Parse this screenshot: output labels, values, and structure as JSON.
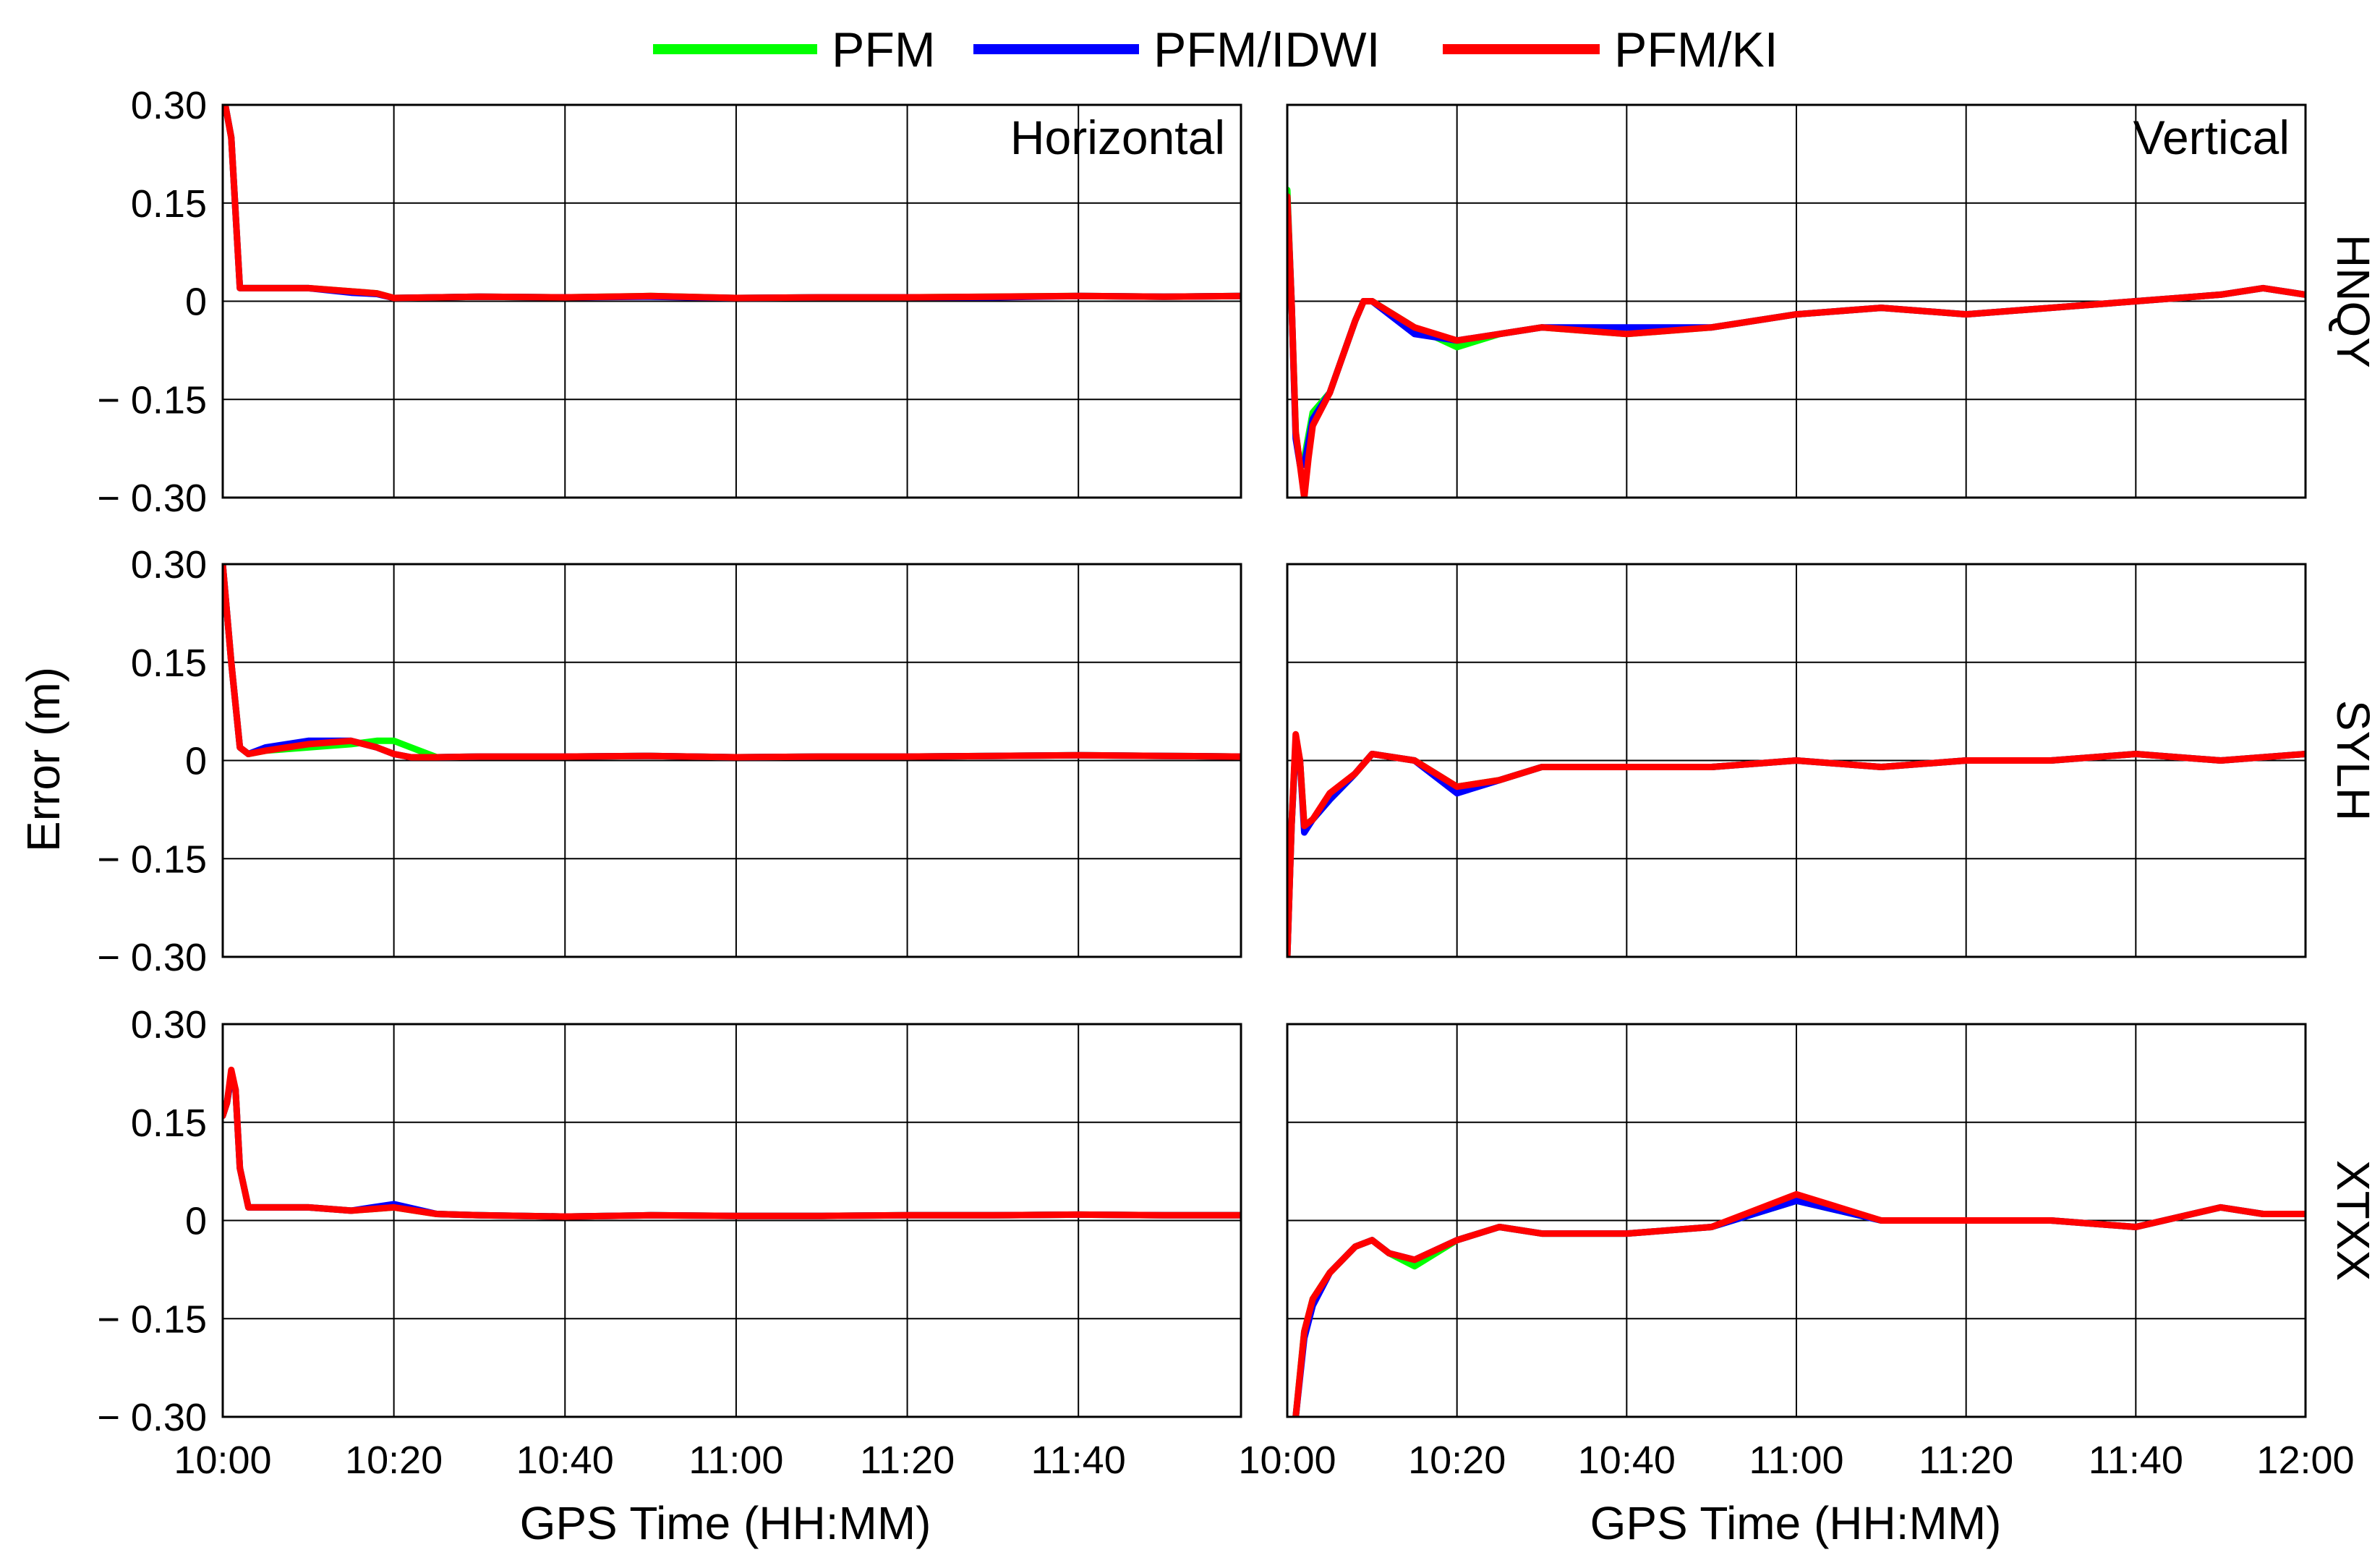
{
  "legend": [
    {
      "label": "PFM",
      "color": "#00ff00"
    },
    {
      "label": "PFM/IDWI",
      "color": "#0000ff"
    },
    {
      "label": "PFM/KI",
      "color": "#ff0000"
    }
  ],
  "y_axis_title": "Error (m)",
  "x_axis_title": "GPS Time (HH:MM)",
  "column_titles": [
    "Horizontal",
    "Vertical"
  ],
  "stations": [
    "HNQY",
    "SYLH",
    "XTXX"
  ],
  "y_ticks": [
    "0.30",
    "0.15",
    "0",
    "− 0.15",
    "− 0.30"
  ],
  "x_ticks_left": [
    "10:00",
    "10:20",
    "10:40",
    "11:00",
    "11:20",
    "11:40"
  ],
  "x_ticks_right": [
    "10:00",
    "10:20",
    "10:40",
    "11:00",
    "11:20",
    "11:40",
    "12:00"
  ],
  "chart_data": {
    "type": "line",
    "x_unit": "minutes after 10:00 (GPS Time)",
    "xlim_horizontal": [
      0,
      119
    ],
    "xlim_vertical": [
      0,
      120
    ],
    "ylim": [
      -0.3,
      0.3
    ],
    "y_ticks": [
      0.3,
      0.15,
      0,
      -0.15,
      -0.3
    ],
    "grid": true,
    "legend_position": "top-center",
    "series_names": [
      "PFM",
      "PFM/IDWI",
      "PFM/KI"
    ],
    "panels": [
      {
        "station": "HNQY",
        "component": "Horizontal",
        "series": [
          {
            "name": "PFM",
            "x": [
              0.3,
              1,
              2,
              5,
              10,
              15,
              18,
              20,
              30,
              40,
              50,
              60,
              70,
              80,
              90,
              100,
              110,
              119
            ],
            "y": [
              0.3,
              0.25,
              0.02,
              0.02,
              0.02,
              0.015,
              0.012,
              0.005,
              0.007,
              0.006,
              0.008,
              0.005,
              0.006,
              0.006,
              0.007,
              0.008,
              0.007,
              0.008
            ]
          },
          {
            "name": "PFM/IDWI",
            "x": [
              0.3,
              1,
              2,
              5,
              10,
              15,
              18,
              20,
              30,
              40,
              50,
              60,
              70,
              80,
              90,
              100,
              110,
              119
            ],
            "y": [
              0.3,
              0.25,
              0.02,
              0.02,
              0.02,
              0.013,
              0.011,
              0.005,
              0.007,
              0.006,
              0.007,
              0.005,
              0.006,
              0.006,
              0.006,
              0.008,
              0.007,
              0.008
            ]
          },
          {
            "name": "PFM/KI",
            "x": [
              0.3,
              1,
              2,
              5,
              10,
              15,
              18,
              20,
              30,
              40,
              50,
              60,
              70,
              80,
              90,
              100,
              110,
              119
            ],
            "y": [
              0.3,
              0.25,
              0.02,
              0.02,
              0.02,
              0.015,
              0.012,
              0.005,
              0.007,
              0.006,
              0.008,
              0.005,
              0.006,
              0.006,
              0.007,
              0.008,
              0.007,
              0.008
            ]
          }
        ]
      },
      {
        "station": "HNQY",
        "component": "Vertical",
        "series": [
          {
            "name": "PFM",
            "x": [
              0,
              0.5,
              1,
              1.5,
              2,
              3,
              5,
              8,
              9,
              10,
              15,
              20,
              25,
              30,
              40,
              50,
              60,
              70,
              80,
              90,
              100,
              110,
              115,
              120
            ],
            "y": [
              0.17,
              0.0,
              -0.2,
              -0.25,
              -0.24,
              -0.17,
              -0.14,
              -0.03,
              0.0,
              0.0,
              -0.04,
              -0.07,
              -0.05,
              -0.04,
              -0.05,
              -0.04,
              -0.02,
              -0.01,
              -0.02,
              -0.01,
              0.0,
              0.01,
              0.02,
              0.01
            ]
          },
          {
            "name": "PFM/IDWI",
            "x": [
              0,
              0.5,
              1,
              1.5,
              2,
              3,
              5,
              8,
              9,
              10,
              15,
              20,
              25,
              30,
              40,
              50,
              60,
              70,
              80,
              90,
              100,
              110,
              115,
              120
            ],
            "y": [
              0.16,
              0.0,
              -0.21,
              -0.25,
              -0.25,
              -0.18,
              -0.14,
              -0.03,
              0.0,
              0.0,
              -0.05,
              -0.06,
              -0.05,
              -0.04,
              -0.04,
              -0.04,
              -0.02,
              -0.01,
              -0.02,
              -0.01,
              0.0,
              0.01,
              0.02,
              0.01
            ]
          },
          {
            "name": "PFM/KI",
            "x": [
              0,
              0.5,
              1,
              1.5,
              2,
              2.5,
              3,
              5,
              8,
              9,
              10,
              15,
              20,
              25,
              30,
              40,
              50,
              60,
              70,
              80,
              90,
              100,
              110,
              115,
              120
            ],
            "y": [
              0.16,
              0.0,
              -0.2,
              -0.25,
              -0.3,
              -0.24,
              -0.19,
              -0.14,
              -0.03,
              0.0,
              0.0,
              -0.04,
              -0.06,
              -0.05,
              -0.04,
              -0.05,
              -0.04,
              -0.02,
              -0.01,
              -0.02,
              -0.01,
              0.0,
              0.01,
              0.02,
              0.01
            ]
          }
        ]
      },
      {
        "station": "SYLH",
        "component": "Horizontal",
        "series": [
          {
            "name": "PFM",
            "x": [
              0,
              1,
              2,
              3,
              5,
              10,
              15,
              18,
              20,
              22,
              25,
              30,
              40,
              50,
              60,
              70,
              80,
              90,
              100,
              110,
              119
            ],
            "y": [
              0.3,
              0.15,
              0.02,
              0.01,
              0.015,
              0.02,
              0.025,
              0.03,
              0.03,
              0.02,
              0.005,
              0.006,
              0.006,
              0.007,
              0.005,
              0.006,
              0.006,
              0.007,
              0.008,
              0.007,
              0.006
            ]
          },
          {
            "name": "PFM/IDWI",
            "x": [
              0,
              1,
              2,
              3,
              5,
              10,
              15,
              18,
              20,
              22,
              25,
              30,
              40,
              50,
              60,
              70,
              80,
              90,
              100,
              110,
              119
            ],
            "y": [
              0.3,
              0.15,
              0.02,
              0.01,
              0.02,
              0.03,
              0.03,
              0.02,
              0.01,
              0.005,
              0.005,
              0.006,
              0.006,
              0.007,
              0.005,
              0.006,
              0.006,
              0.007,
              0.008,
              0.007,
              0.006
            ]
          },
          {
            "name": "PFM/KI",
            "x": [
              0,
              1,
              2,
              3,
              5,
              10,
              15,
              18,
              20,
              22,
              25,
              30,
              40,
              50,
              60,
              70,
              80,
              90,
              100,
              110,
              119
            ],
            "y": [
              0.3,
              0.15,
              0.02,
              0.01,
              0.015,
              0.025,
              0.03,
              0.02,
              0.01,
              0.005,
              0.005,
              0.006,
              0.006,
              0.007,
              0.005,
              0.006,
              0.006,
              0.007,
              0.008,
              0.007,
              0.006
            ]
          }
        ]
      },
      {
        "station": "SYLH",
        "component": "Vertical",
        "series": [
          {
            "name": "PFM",
            "x": [
              0,
              0.5,
              1,
              1.5,
              2,
              3,
              5,
              8,
              10,
              15,
              20,
              25,
              30,
              40,
              50,
              60,
              70,
              80,
              90,
              100,
              110,
              120
            ],
            "y": [
              -0.3,
              -0.1,
              0.03,
              0.0,
              -0.1,
              -0.09,
              -0.06,
              -0.02,
              0.01,
              0.0,
              -0.04,
              -0.03,
              -0.01,
              -0.01,
              -0.01,
              0.0,
              -0.01,
              0.0,
              0.0,
              0.01,
              0.0,
              0.01
            ]
          },
          {
            "name": "PFM/IDWI",
            "x": [
              0,
              0.5,
              1,
              1.5,
              2,
              3,
              5,
              8,
              10,
              15,
              20,
              25,
              30,
              40,
              50,
              60,
              70,
              80,
              90,
              100,
              110,
              120
            ],
            "y": [
              -0.3,
              -0.1,
              0.03,
              0.0,
              -0.11,
              -0.09,
              -0.06,
              -0.02,
              0.01,
              0.0,
              -0.05,
              -0.03,
              -0.01,
              -0.01,
              -0.01,
              0.0,
              -0.01,
              0.0,
              0.0,
              0.01,
              0.0,
              0.01
            ]
          },
          {
            "name": "PFM/KI",
            "x": [
              0,
              0.5,
              1,
              1.5,
              2,
              3,
              5,
              8,
              10,
              15,
              20,
              25,
              30,
              40,
              50,
              60,
              70,
              80,
              90,
              100,
              110,
              120
            ],
            "y": [
              -0.3,
              -0.1,
              0.04,
              0.0,
              -0.1,
              -0.09,
              -0.05,
              -0.02,
              0.01,
              0.0,
              -0.04,
              -0.03,
              -0.01,
              -0.01,
              -0.01,
              0.0,
              -0.01,
              0.0,
              0.0,
              0.01,
              0.0,
              0.01
            ]
          }
        ]
      },
      {
        "station": "XTXX",
        "component": "Horizontal",
        "series": [
          {
            "name": "PFM",
            "x": [
              0,
              0.5,
              1,
              1.5,
              2,
              3,
              5,
              10,
              15,
              20,
              25,
              30,
              40,
              50,
              60,
              70,
              80,
              90,
              100,
              110,
              119
            ],
            "y": [
              0.16,
              0.18,
              0.22,
              0.2,
              0.08,
              0.02,
              0.02,
              0.02,
              0.015,
              0.02,
              0.01,
              0.008,
              0.006,
              0.008,
              0.007,
              0.007,
              0.008,
              0.008,
              0.009,
              0.008,
              0.008
            ]
          },
          {
            "name": "PFM/IDWI",
            "x": [
              0,
              0.5,
              1,
              1.5,
              2,
              3,
              5,
              10,
              15,
              20,
              25,
              30,
              40,
              50,
              60,
              70,
              80,
              90,
              100,
              110,
              119
            ],
            "y": [
              0.16,
              0.18,
              0.22,
              0.2,
              0.08,
              0.02,
              0.02,
              0.02,
              0.015,
              0.025,
              0.01,
              0.008,
              0.006,
              0.008,
              0.007,
              0.007,
              0.008,
              0.008,
              0.009,
              0.008,
              0.008
            ]
          },
          {
            "name": "PFM/KI",
            "x": [
              0,
              0.5,
              1,
              1.5,
              2,
              3,
              5,
              10,
              15,
              20,
              25,
              30,
              40,
              50,
              60,
              70,
              80,
              90,
              100,
              110,
              119
            ],
            "y": [
              0.16,
              0.18,
              0.23,
              0.2,
              0.08,
              0.02,
              0.02,
              0.02,
              0.015,
              0.02,
              0.01,
              0.008,
              0.006,
              0.008,
              0.007,
              0.007,
              0.008,
              0.008,
              0.009,
              0.008,
              0.008
            ]
          }
        ]
      },
      {
        "station": "XTXX",
        "component": "Vertical",
        "series": [
          {
            "name": "PFM",
            "x": [
              1,
              2,
              3,
              5,
              8,
              10,
              12,
              15,
              20,
              25,
              30,
              40,
              50,
              60,
              70,
              80,
              90,
              100,
              110,
              115,
              120
            ],
            "y": [
              -0.3,
              -0.17,
              -0.12,
              -0.08,
              -0.04,
              -0.03,
              -0.05,
              -0.07,
              -0.03,
              -0.01,
              -0.02,
              -0.02,
              -0.01,
              0.03,
              0.0,
              0.0,
              0.0,
              -0.01,
              0.02,
              0.01,
              0.01
            ]
          },
          {
            "name": "PFM/IDWI",
            "x": [
              1,
              2,
              3,
              5,
              8,
              10,
              12,
              15,
              20,
              25,
              30,
              40,
              50,
              60,
              70,
              80,
              90,
              100,
              110,
              115,
              120
            ],
            "y": [
              -0.3,
              -0.18,
              -0.13,
              -0.08,
              -0.04,
              -0.03,
              -0.05,
              -0.06,
              -0.03,
              -0.01,
              -0.02,
              -0.02,
              -0.01,
              0.03,
              0.0,
              0.0,
              0.0,
              -0.01,
              0.02,
              0.01,
              0.01
            ]
          },
          {
            "name": "PFM/KI",
            "x": [
              1,
              2,
              3,
              5,
              8,
              10,
              12,
              15,
              20,
              25,
              30,
              40,
              50,
              60,
              70,
              80,
              90,
              100,
              110,
              115,
              120
            ],
            "y": [
              -0.3,
              -0.17,
              -0.12,
              -0.08,
              -0.04,
              -0.03,
              -0.05,
              -0.06,
              -0.03,
              -0.01,
              -0.02,
              -0.02,
              -0.01,
              0.04,
              0.0,
              0.0,
              0.0,
              -0.01,
              0.02,
              0.01,
              0.01
            ]
          }
        ]
      }
    ]
  }
}
